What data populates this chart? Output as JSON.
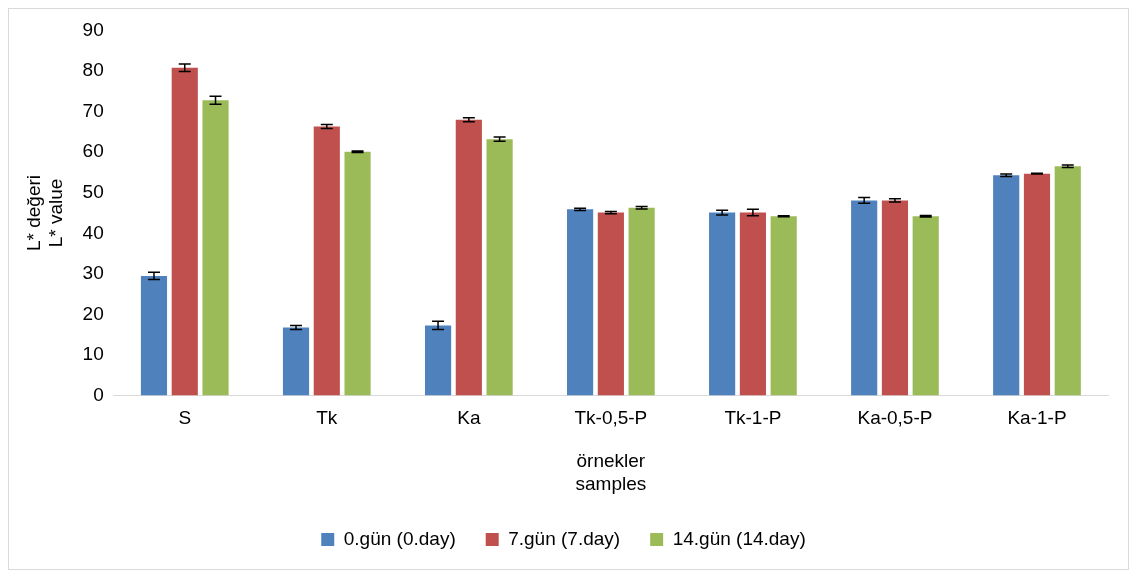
{
  "chart_data": {
    "type": "bar",
    "xlabel": "örnekler\nsamples",
    "ylabel": "L* değeri\nL* value",
    "categories": [
      "S",
      "Tk",
      "Ka",
      "Tk-0,5-P",
      "Tk-1-P",
      "Ka-0,5-P",
      "Ka-1-P"
    ],
    "series": [
      {
        "name": "0.gün (0.day)",
        "color": "#4f81bd",
        "values": [
          29.5,
          16.8,
          17.3,
          45.9,
          45.1,
          48.1,
          54.3
        ],
        "errors": [
          0.9,
          0.5,
          1.0,
          0.3,
          0.6,
          0.7,
          0.3
        ]
      },
      {
        "name": "7.gün (7.day)",
        "color": "#c0504d",
        "values": [
          80.8,
          66.3,
          68.0,
          45.1,
          45.1,
          48.1,
          54.7
        ],
        "errors": [
          0.9,
          0.5,
          0.5,
          0.3,
          0.8,
          0.4,
          0.1
        ]
      },
      {
        "name": "14.gün (14.day)",
        "color": "#9bbb59",
        "values": [
          72.8,
          60.1,
          63.2,
          46.3,
          44.2,
          44.2,
          56.5
        ],
        "errors": [
          1.0,
          0.2,
          0.5,
          0.3,
          0.1,
          0.2,
          0.3
        ]
      }
    ],
    "ylim": [
      0,
      90
    ],
    "yticks": [
      0,
      10,
      20,
      30,
      40,
      50,
      60,
      70,
      80,
      90
    ],
    "grid": false,
    "legend": "bottom"
  }
}
